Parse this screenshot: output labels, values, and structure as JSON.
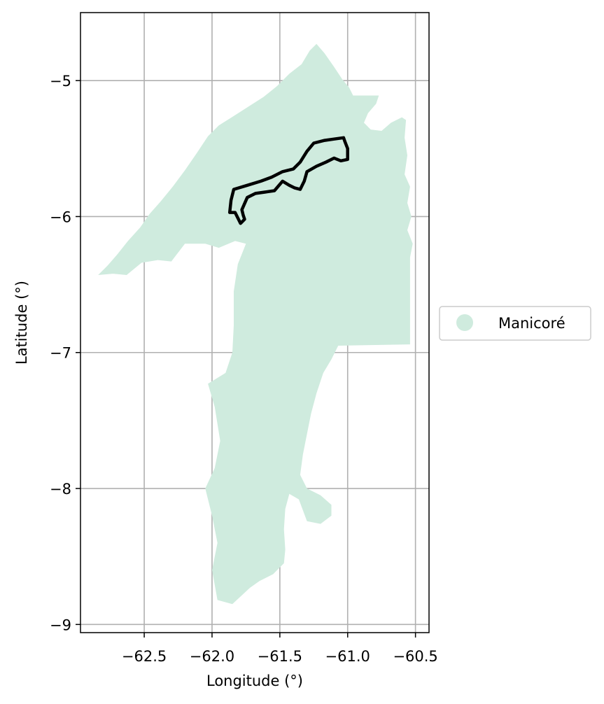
{
  "chart_data": {
    "type": "map",
    "xlabel": "Longitude (°)",
    "ylabel": "Latitude (°)",
    "xlim": [
      -62.97,
      -60.4
    ],
    "ylim": [
      -9.06,
      -4.5
    ],
    "xticks": [
      -62.5,
      -62.0,
      -61.5,
      -61.0,
      -60.5
    ],
    "xtick_labels": [
      "−62.5",
      "−62.0",
      "−61.5",
      "−61.0",
      "−60.5"
    ],
    "yticks": [
      -5,
      -6,
      -7,
      -8,
      -9
    ],
    "ytick_labels": [
      "−5",
      "−6",
      "−7",
      "−8",
      "−9"
    ],
    "grid": true,
    "legend": {
      "placement": "right",
      "entries": [
        {
          "label": "Manicoré",
          "color": "#cfebde"
        }
      ]
    },
    "colors": {
      "region_fill": "#cfebde",
      "outline": "#000000",
      "grid": "#b0b0b0"
    },
    "region": {
      "name": "Manicoré",
      "polygon": [
        [
          -62.84,
          -6.43
        ],
        [
          -62.77,
          -6.36
        ],
        [
          -62.7,
          -6.28
        ],
        [
          -62.62,
          -6.18
        ],
        [
          -62.53,
          -6.08
        ],
        [
          -62.46,
          -5.98
        ],
        [
          -62.38,
          -5.89
        ],
        [
          -62.29,
          -5.78
        ],
        [
          -62.2,
          -5.66
        ],
        [
          -62.11,
          -5.53
        ],
        [
          -62.03,
          -5.41
        ],
        [
          -61.95,
          -5.33
        ],
        [
          -61.84,
          -5.26
        ],
        [
          -61.73,
          -5.19
        ],
        [
          -61.62,
          -5.12
        ],
        [
          -61.52,
          -5.04
        ],
        [
          -61.43,
          -4.95
        ],
        [
          -61.34,
          -4.88
        ],
        [
          -61.28,
          -4.78
        ],
        [
          -61.23,
          -4.73
        ],
        [
          -61.17,
          -4.8
        ],
        [
          -61.1,
          -4.9
        ],
        [
          -61.04,
          -4.99
        ],
        [
          -60.99,
          -5.05
        ],
        [
          -60.96,
          -5.11
        ],
        [
          -60.77,
          -5.11
        ],
        [
          -60.79,
          -5.17
        ],
        [
          -60.85,
          -5.24
        ],
        [
          -60.88,
          -5.31
        ],
        [
          -60.83,
          -5.36
        ],
        [
          -60.75,
          -5.37
        ],
        [
          -60.68,
          -5.31
        ],
        [
          -60.6,
          -5.27
        ],
        [
          -60.57,
          -5.29
        ],
        [
          -60.58,
          -5.42
        ],
        [
          -60.56,
          -5.55
        ],
        [
          -60.58,
          -5.69
        ],
        [
          -60.54,
          -5.78
        ],
        [
          -60.56,
          -5.9
        ],
        [
          -60.53,
          -6.0
        ],
        [
          -60.56,
          -6.1
        ],
        [
          -60.52,
          -6.2
        ],
        [
          -60.54,
          -6.3
        ],
        [
          -60.54,
          -6.94
        ],
        [
          -61.07,
          -6.95
        ],
        [
          -61.12,
          -7.05
        ],
        [
          -61.18,
          -7.15
        ],
        [
          -61.23,
          -7.3
        ],
        [
          -61.27,
          -7.45
        ],
        [
          -61.3,
          -7.6
        ],
        [
          -61.33,
          -7.75
        ],
        [
          -61.35,
          -7.9
        ],
        [
          -61.3,
          -8.0
        ],
        [
          -61.2,
          -8.05
        ],
        [
          -61.12,
          -8.12
        ],
        [
          -61.12,
          -8.2
        ],
        [
          -61.2,
          -8.26
        ],
        [
          -61.3,
          -8.24
        ],
        [
          -61.36,
          -8.08
        ],
        [
          -61.43,
          -8.04
        ],
        [
          -61.46,
          -8.15
        ],
        [
          -61.47,
          -8.3
        ],
        [
          -61.46,
          -8.45
        ],
        [
          -61.47,
          -8.55
        ],
        [
          -61.55,
          -8.63
        ],
        [
          -61.65,
          -8.68
        ],
        [
          -61.72,
          -8.73
        ],
        [
          -61.85,
          -8.85
        ],
        [
          -61.96,
          -8.82
        ],
        [
          -62.0,
          -8.6
        ],
        [
          -61.96,
          -8.4
        ],
        [
          -62.0,
          -8.2
        ],
        [
          -62.05,
          -8.0
        ],
        [
          -61.98,
          -7.85
        ],
        [
          -61.94,
          -7.65
        ],
        [
          -61.98,
          -7.4
        ],
        [
          -62.03,
          -7.23
        ],
        [
          -61.9,
          -7.15
        ],
        [
          -61.85,
          -7.0
        ],
        [
          -61.84,
          -6.8
        ],
        [
          -61.84,
          -6.55
        ],
        [
          -61.81,
          -6.35
        ],
        [
          -61.75,
          -6.2
        ],
        [
          -61.83,
          -6.18
        ],
        [
          -61.95,
          -6.23
        ],
        [
          -62.05,
          -6.2
        ],
        [
          -62.2,
          -6.2
        ],
        [
          -62.3,
          -6.33
        ],
        [
          -62.4,
          -6.32
        ],
        [
          -62.52,
          -6.34
        ],
        [
          -62.63,
          -6.43
        ],
        [
          -62.73,
          -6.42
        ]
      ]
    },
    "outline": {
      "polygon": [
        [
          -61.87,
          -5.97
        ],
        [
          -61.86,
          -5.88
        ],
        [
          -61.84,
          -5.8
        ],
        [
          -61.74,
          -5.77
        ],
        [
          -61.64,
          -5.74
        ],
        [
          -61.56,
          -5.71
        ],
        [
          -61.48,
          -5.67
        ],
        [
          -61.4,
          -5.65
        ],
        [
          -61.35,
          -5.6
        ],
        [
          -61.3,
          -5.52
        ],
        [
          -61.25,
          -5.46
        ],
        [
          -61.17,
          -5.44
        ],
        [
          -61.1,
          -5.43
        ],
        [
          -61.03,
          -5.42
        ],
        [
          -61.02,
          -5.45
        ],
        [
          -61.0,
          -5.5
        ],
        [
          -61.0,
          -5.58
        ],
        [
          -61.05,
          -5.59
        ],
        [
          -61.1,
          -5.57
        ],
        [
          -61.16,
          -5.6
        ],
        [
          -61.23,
          -5.63
        ],
        [
          -61.3,
          -5.67
        ],
        [
          -61.32,
          -5.74
        ],
        [
          -61.35,
          -5.8
        ],
        [
          -61.39,
          -5.79
        ],
        [
          -61.43,
          -5.77
        ],
        [
          -61.48,
          -5.74
        ],
        [
          -61.54,
          -5.81
        ],
        [
          -61.61,
          -5.82
        ],
        [
          -61.68,
          -5.83
        ],
        [
          -61.74,
          -5.86
        ],
        [
          -61.78,
          -5.95
        ],
        [
          -61.77,
          -5.99
        ],
        [
          -61.76,
          -6.02
        ],
        [
          -61.79,
          -6.05
        ],
        [
          -61.83,
          -5.97
        ]
      ]
    }
  }
}
